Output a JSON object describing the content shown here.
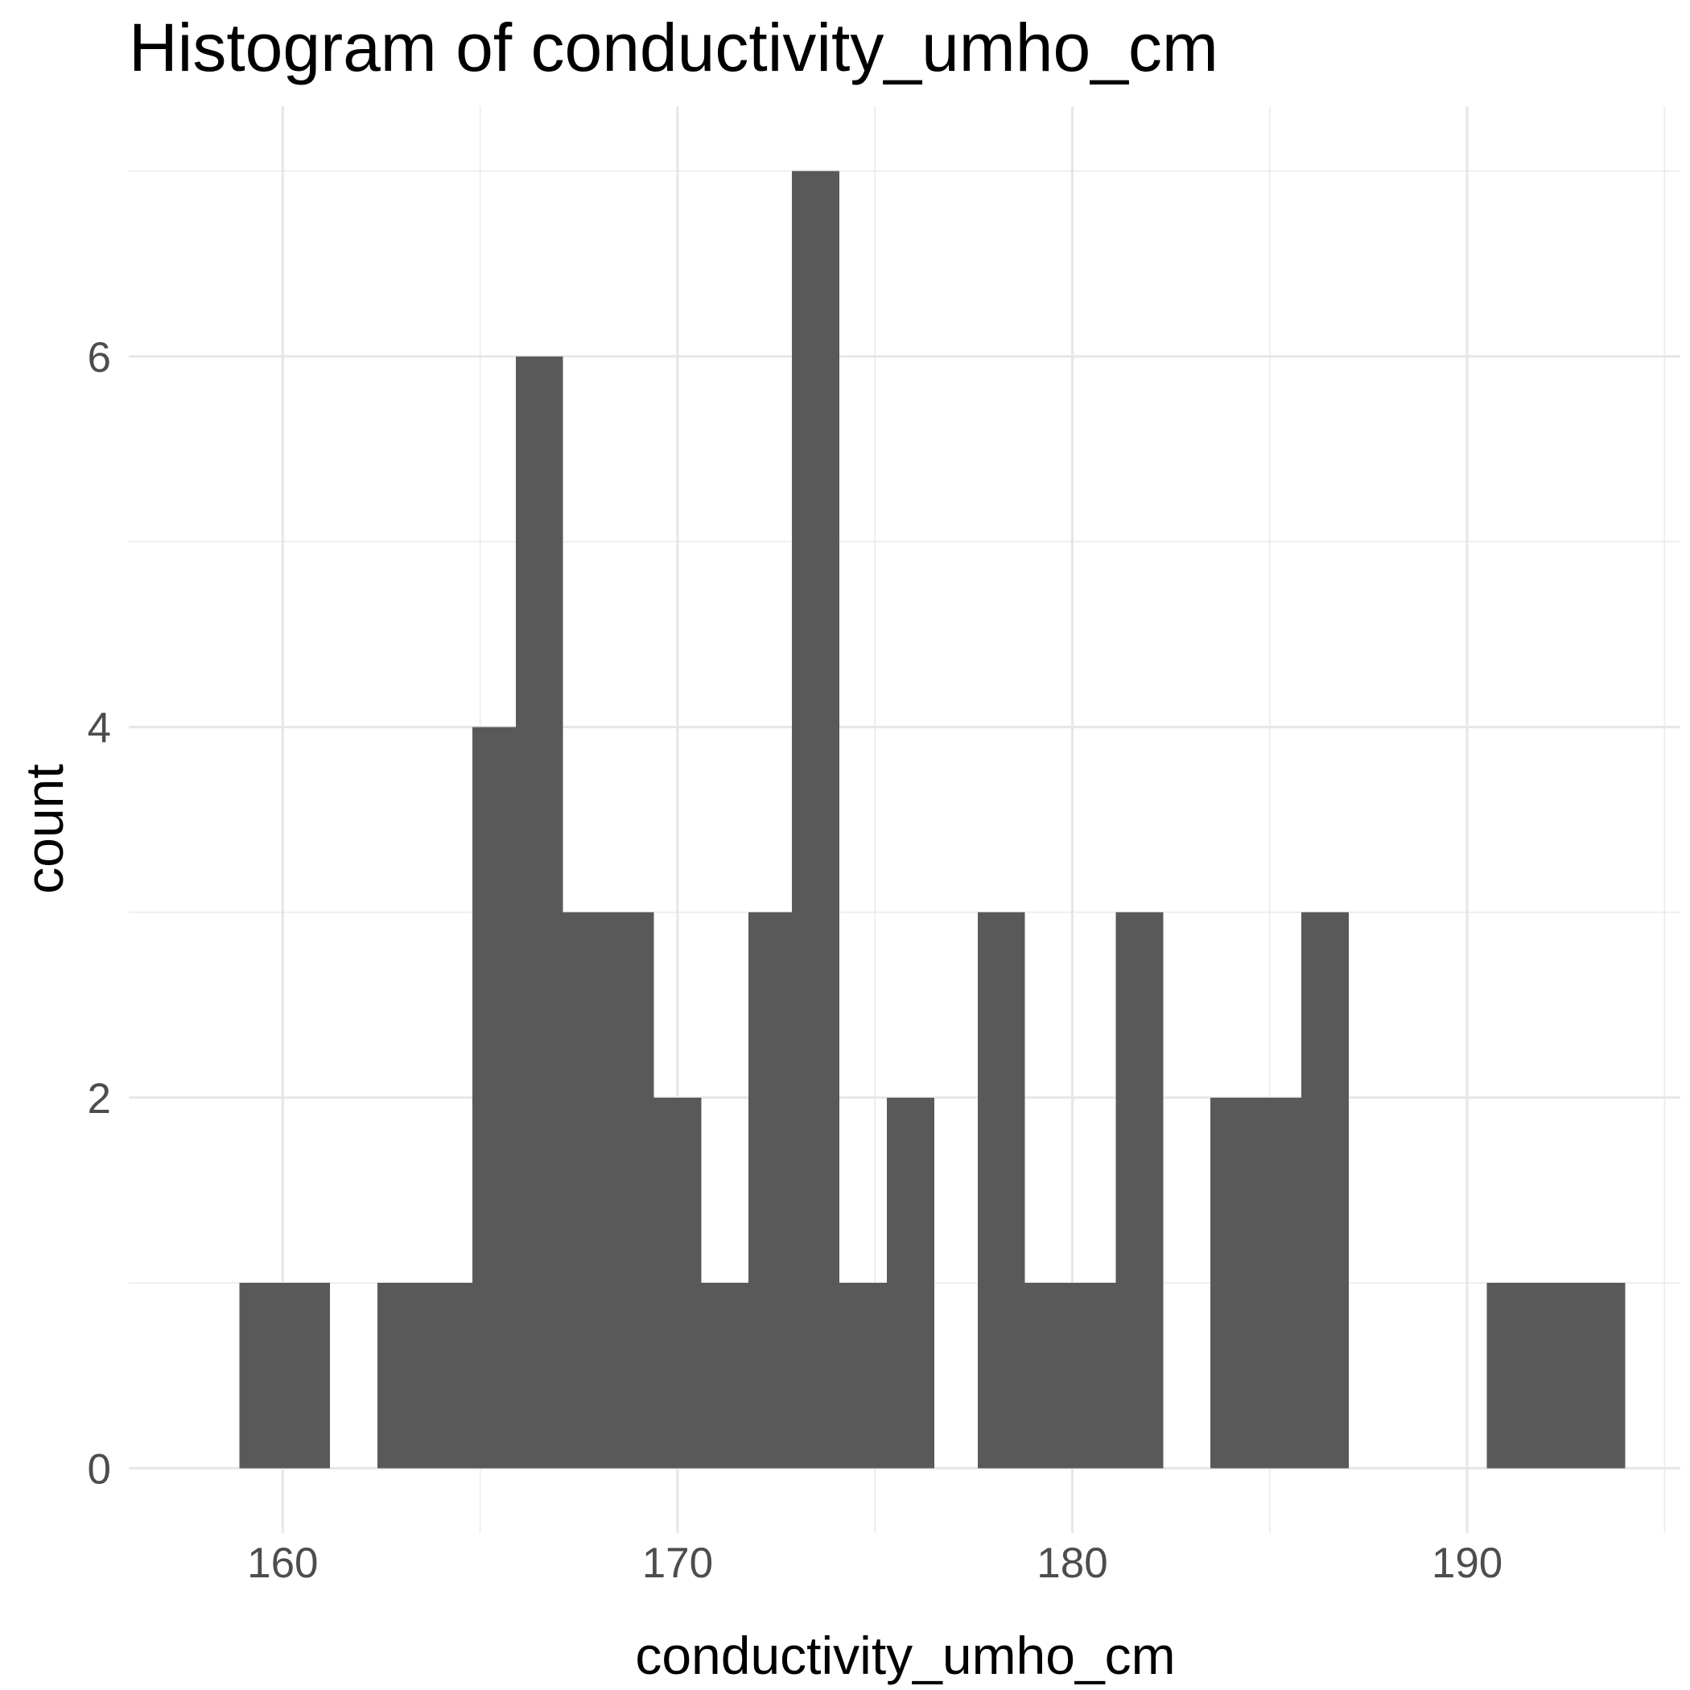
{
  "chart_data": {
    "type": "bar",
    "title": "Histogram of  conductivity_umho_cm",
    "xlabel": "conductivity_umho_cm",
    "ylabel": "count",
    "xlim": [
      156.1,
      195.4
    ],
    "ylim": [
      -0.35,
      7.35
    ],
    "x_ticks": [
      160,
      170,
      180,
      190
    ],
    "x_tick_labels": [
      "160",
      "170",
      "180",
      "190"
    ],
    "y_ticks": [
      0,
      2,
      4,
      6
    ],
    "y_tick_labels": [
      "0",
      "2",
      "4",
      "6"
    ],
    "grid": true,
    "bar_color": "#595959",
    "bins": [
      {
        "x0": 158.9,
        "x1": 160.1,
        "count": 1
      },
      {
        "x0": 160.1,
        "x1": 161.2,
        "count": 1
      },
      {
        "x0": 161.2,
        "x1": 162.4,
        "count": 0
      },
      {
        "x0": 162.4,
        "x1": 163.6,
        "count": 1
      },
      {
        "x0": 163.6,
        "x1": 164.8,
        "count": 1
      },
      {
        "x0": 164.8,
        "x1": 165.9,
        "count": 4
      },
      {
        "x0": 165.9,
        "x1": 167.1,
        "count": 6
      },
      {
        "x0": 167.1,
        "x1": 168.3,
        "count": 3
      },
      {
        "x0": 168.3,
        "x1": 169.4,
        "count": 3
      },
      {
        "x0": 169.4,
        "x1": 170.6,
        "count": 2
      },
      {
        "x0": 170.6,
        "x1": 171.8,
        "count": 1
      },
      {
        "x0": 171.8,
        "x1": 172.9,
        "count": 3
      },
      {
        "x0": 172.9,
        "x1": 174.1,
        "count": 7
      },
      {
        "x0": 174.1,
        "x1": 175.3,
        "count": 1
      },
      {
        "x0": 175.3,
        "x1": 176.5,
        "count": 2
      },
      {
        "x0": 176.5,
        "x1": 177.6,
        "count": 0
      },
      {
        "x0": 177.6,
        "x1": 178.8,
        "count": 3
      },
      {
        "x0": 178.8,
        "x1": 180.0,
        "count": 1
      },
      {
        "x0": 180.0,
        "x1": 181.1,
        "count": 1
      },
      {
        "x0": 181.1,
        "x1": 182.3,
        "count": 3
      },
      {
        "x0": 182.3,
        "x1": 183.5,
        "count": 0
      },
      {
        "x0": 183.5,
        "x1": 184.7,
        "count": 2
      },
      {
        "x0": 184.7,
        "x1": 185.8,
        "count": 2
      },
      {
        "x0": 185.8,
        "x1": 187.0,
        "count": 3
      },
      {
        "x0": 187.0,
        "x1": 188.2,
        "count": 0
      },
      {
        "x0": 188.2,
        "x1": 189.3,
        "count": 0
      },
      {
        "x0": 189.3,
        "x1": 190.5,
        "count": 0
      },
      {
        "x0": 190.5,
        "x1": 191.7,
        "count": 1
      },
      {
        "x0": 191.7,
        "x1": 192.8,
        "count": 1
      },
      {
        "x0": 192.8,
        "x1": 194.0,
        "count": 1
      }
    ]
  }
}
